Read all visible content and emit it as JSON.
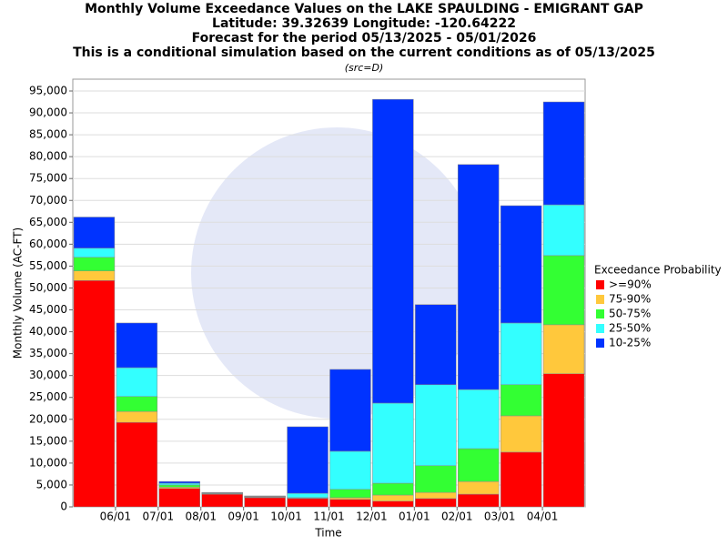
{
  "chart_data": {
    "type": "stacked_bar",
    "title": "Monthly Volume Exceedance Values on the LAKE SPAULDING - EMIGRANT GAP",
    "subtitle_lines": [
      "Latitude: 39.32639 Longitude: -120.64222",
      "Forecast for the period 05/13/2025 - 05/01/2026",
      "This is a conditional simulation based on the current conditions as of 05/13/2025"
    ],
    "source_note": "(src=D)",
    "x_label": "Time",
    "y_label": "Monthly Volume (AC-FT)",
    "legend_title": "Exceedance Probability",
    "legend_position": "right",
    "categories": [
      null,
      "06/01",
      "07/01",
      "08/01",
      "09/01",
      "10/01",
      "11/01",
      "12/01",
      "01/01",
      "02/01",
      "03/01",
      "04/01"
    ],
    "series": [
      {
        "name": ">=90%",
        "color": "#ff0000",
        "values": [
          51700,
          19300,
          4200,
          2900,
          2100,
          1900,
          1700,
          1300,
          1900,
          2900,
          12500,
          30400
        ]
      },
      {
        "name": "75-90%",
        "color": "#ffc83c",
        "values": [
          2200,
          2500,
          300,
          100,
          100,
          100,
          400,
          1400,
          1400,
          2900,
          8300,
          11200
        ]
      },
      {
        "name": "50-75%",
        "color": "#33ff33",
        "values": [
          3100,
          3400,
          500,
          100,
          100,
          100,
          1900,
          2700,
          6100,
          7500,
          7100,
          15800
        ]
      },
      {
        "name": "25-50%",
        "color": "#33ffff",
        "values": [
          2100,
          6600,
          400,
          100,
          100,
          1000,
          8700,
          18300,
          18500,
          13500,
          14100,
          11600
        ]
      },
      {
        "name": "10-25%",
        "color": "#0033ff",
        "values": [
          7100,
          10200,
          400,
          100,
          100,
          15200,
          18700,
          69400,
          18300,
          51400,
          26800,
          23500
        ]
      }
    ],
    "ylim": [
      0,
      97700
    ],
    "yticks": [
      0,
      {
        "value": 5000,
        "label": "5,000"
      },
      {
        "value": 10000,
        "label": "10,000"
      },
      {
        "value": 15000,
        "label": "15,000"
      },
      {
        "value": 20000,
        "label": "20,000"
      },
      {
        "value": 25000,
        "label": "25,000"
      },
      {
        "value": 30000,
        "label": "30,000"
      },
      {
        "value": 35000,
        "label": "35,000"
      },
      {
        "value": 40000,
        "label": "40,000"
      },
      {
        "value": 45000,
        "label": "45,000"
      },
      {
        "value": 50000,
        "label": "50,000"
      },
      {
        "value": 55000,
        "label": "55,000"
      },
      {
        "value": 60000,
        "label": "60,000"
      },
      {
        "value": 65000,
        "label": "65,000"
      },
      {
        "value": 70000,
        "label": "70,000"
      },
      {
        "value": 75000,
        "label": "75,000"
      },
      {
        "value": 80000,
        "label": "80,000"
      },
      {
        "value": 85000,
        "label": "85,000"
      },
      {
        "value": 90000,
        "label": "90,000"
      },
      {
        "value": 95000,
        "label": "95,000"
      }
    ],
    "grid": true
  }
}
